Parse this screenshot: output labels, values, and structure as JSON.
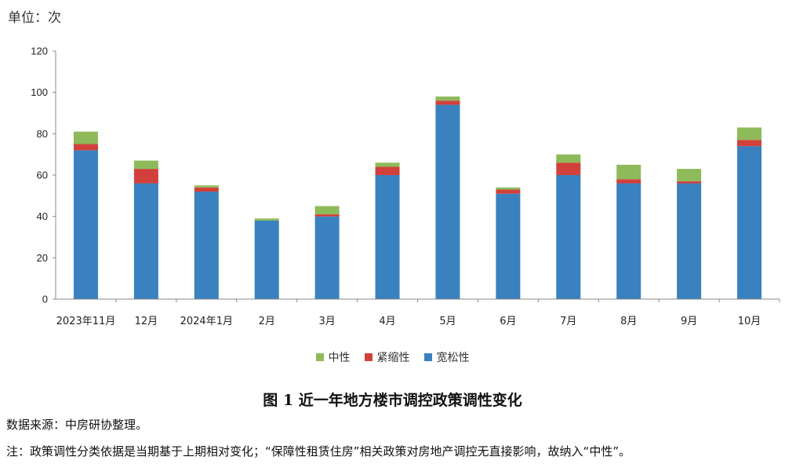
{
  "unit_label": "单位：次",
  "figure_title": "图 1 近一年地方楼市调控政策调性变化",
  "source_text": "数据来源：中房研协整理。",
  "note_text": "注：政策调性分类依据是当期基于上期相对变化；“保障性租赁住房”相关政策对房地产调控无直接影响，故纳入“中性”。",
  "colors": {
    "loose": "#3A81BF",
    "tight": "#D2403C",
    "neutral": "#8EBA5A",
    "axis": "#888888"
  },
  "chart_data": {
    "type": "bar",
    "stacked": true,
    "categories": [
      "2023年11月",
      "12月",
      "2024年1月",
      "2月",
      "3月",
      "4月",
      "5月",
      "6月",
      "7月",
      "8月",
      "9月",
      "10月"
    ],
    "series": [
      {
        "name": "宽松性",
        "values": [
          72,
          56,
          52,
          38,
          40,
          60,
          94,
          51,
          60,
          56,
          56,
          74
        ]
      },
      {
        "name": "紧缩性",
        "values": [
          3,
          7,
          2,
          0,
          1,
          4,
          2,
          2,
          6,
          2,
          1,
          3
        ]
      },
      {
        "name": "中性",
        "values": [
          6,
          4,
          1,
          1,
          4,
          2,
          2,
          1,
          4,
          7,
          6,
          6
        ]
      }
    ],
    "ylim": [
      0,
      120
    ],
    "yticks": [
      0,
      20,
      40,
      60,
      80,
      100,
      120
    ],
    "legend": [
      "中性",
      "紧缩性",
      "宽松性"
    ],
    "legend_position": "bottom",
    "grid": false
  }
}
